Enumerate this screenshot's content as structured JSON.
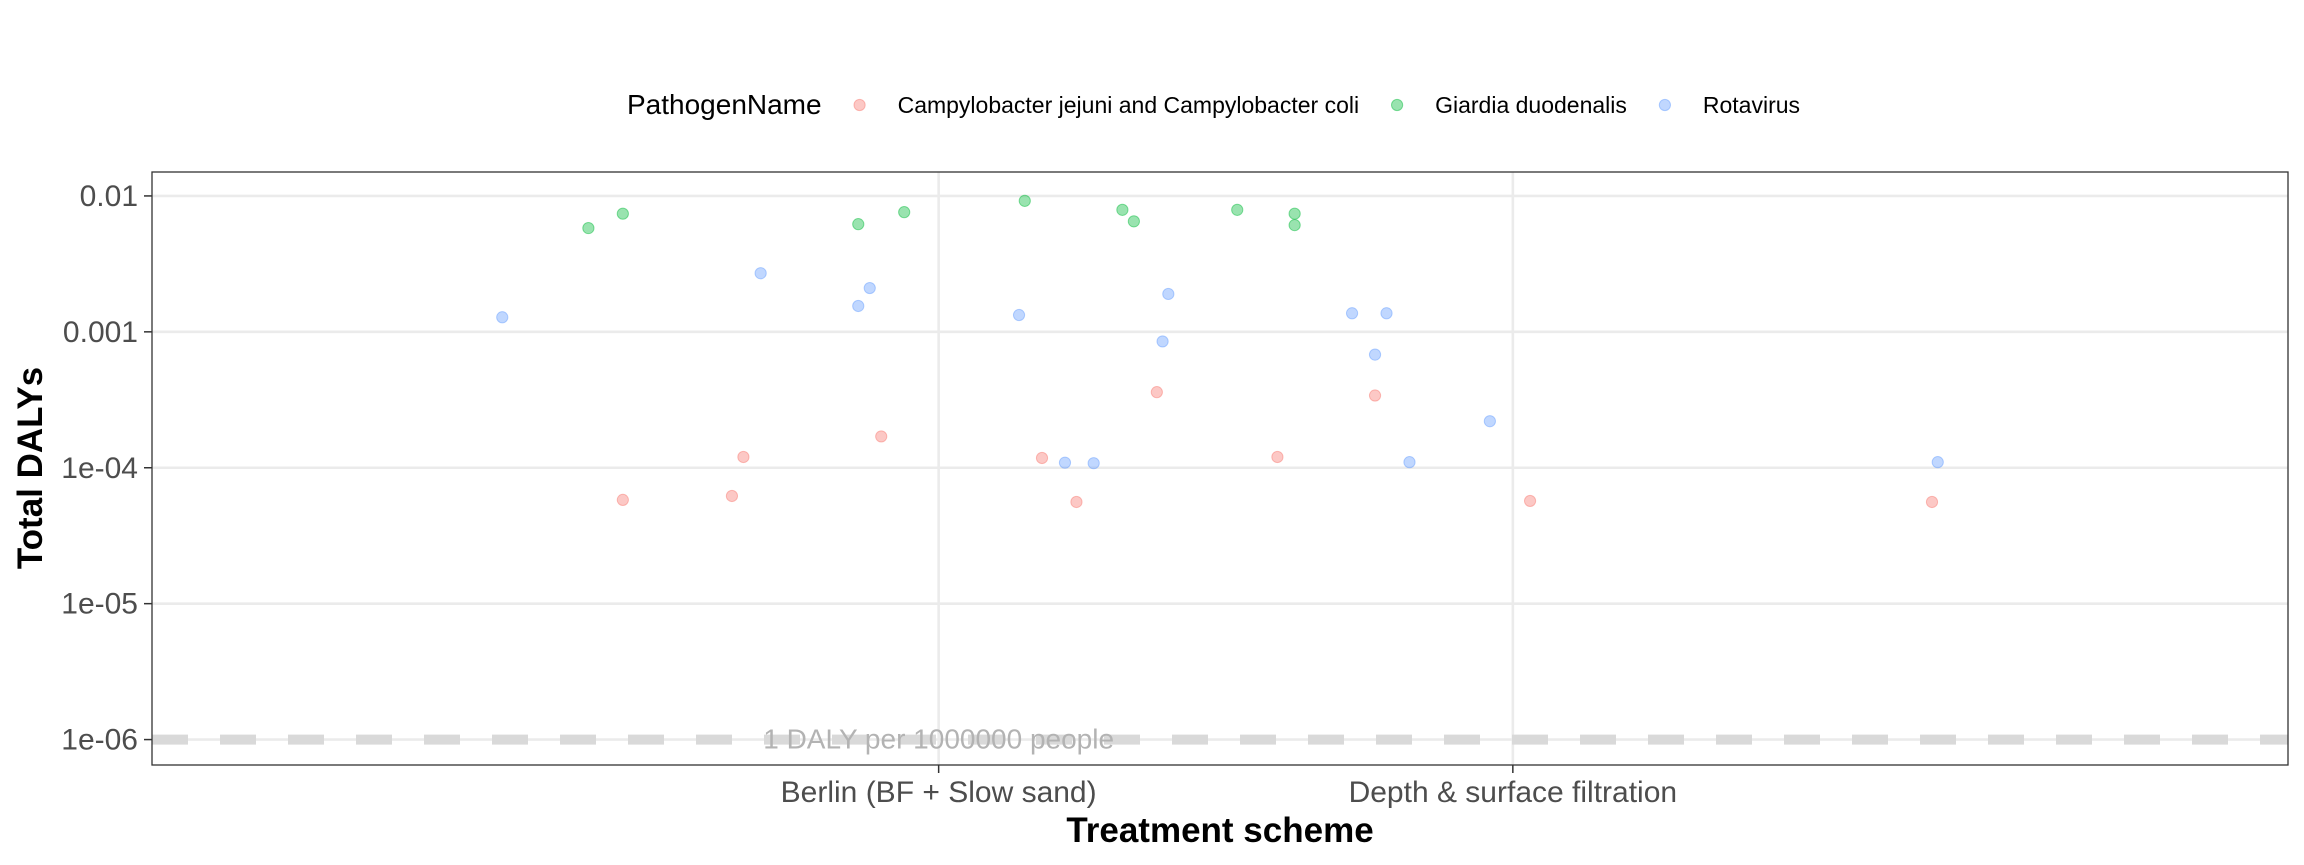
{
  "chart_data": {
    "type": "scatter",
    "title": "",
    "xlabel": "Treatment scheme",
    "ylabel": "Total DALYs",
    "y_scale": "log10",
    "ylim": [
      6.5e-07,
      0.015
    ],
    "y_ticks": [
      {
        "value": 0.01,
        "label": "0.01"
      },
      {
        "value": 0.001,
        "label": "0.001"
      },
      {
        "value": 0.0001,
        "label": "1e-04"
      },
      {
        "value": 1e-05,
        "label": "1e-05"
      },
      {
        "value": 1e-06,
        "label": "1e-06"
      }
    ],
    "x_range": [
      -0.37,
      3.35
    ],
    "x_categories": [
      {
        "position": 1,
        "label": "Berlin (BF + Slow sand)"
      },
      {
        "position": 2,
        "label": "Depth & surface filtration"
      }
    ],
    "grid": true,
    "legend": {
      "title": "PathogenName",
      "placement": "top",
      "entries": [
        {
          "name": "Campylobacter jejuni and Campylobacter coli",
          "color": "#F8766D"
        },
        {
          "name": "Giardia duodenalis",
          "color": "#00BA38"
        },
        {
          "name": "Rotavirus",
          "color": "#619CFF"
        }
      ]
    },
    "reference_line": {
      "value": 1e-06,
      "label": "1 DALY per 1000000 people",
      "color": "#d9d9d9"
    },
    "series": [
      {
        "name": "Campylobacter jejuni and Campylobacter coli",
        "color": "#F8766D",
        "points": [
          {
            "x": 0.45,
            "y": 5.8e-05
          },
          {
            "x": 0.64,
            "y": 6.2e-05
          },
          {
            "x": 0.66,
            "y": 0.00012
          },
          {
            "x": 0.9,
            "y": 0.00017
          },
          {
            "x": 1.18,
            "y": 0.000118
          },
          {
            "x": 1.24,
            "y": 5.6e-05
          },
          {
            "x": 1.38,
            "y": 0.00036
          },
          {
            "x": 1.59,
            "y": 0.00012
          },
          {
            "x": 1.76,
            "y": 0.00034
          },
          {
            "x": 2.03,
            "y": 5.7e-05
          },
          {
            "x": 2.73,
            "y": 5.6e-05
          }
        ]
      },
      {
        "name": "Giardia duodenalis",
        "color": "#00BA38",
        "points": [
          {
            "x": 0.39,
            "y": 0.0058
          },
          {
            "x": 0.45,
            "y": 0.0074
          },
          {
            "x": 0.86,
            "y": 0.0062
          },
          {
            "x": 0.94,
            "y": 0.0076
          },
          {
            "x": 1.15,
            "y": 0.0092
          },
          {
            "x": 1.32,
            "y": 0.0079
          },
          {
            "x": 1.34,
            "y": 0.0065
          },
          {
            "x": 1.52,
            "y": 0.0079
          },
          {
            "x": 1.62,
            "y": 0.0074
          },
          {
            "x": 1.62,
            "y": 0.0061
          }
        ]
      },
      {
        "name": "Rotavirus",
        "color": "#619CFF",
        "points": [
          {
            "x": 0.24,
            "y": 0.00128
          },
          {
            "x": 0.69,
            "y": 0.0027
          },
          {
            "x": 0.86,
            "y": 0.00155
          },
          {
            "x": 0.88,
            "y": 0.0021
          },
          {
            "x": 1.14,
            "y": 0.00133
          },
          {
            "x": 1.22,
            "y": 0.000109
          },
          {
            "x": 1.27,
            "y": 0.000108
          },
          {
            "x": 1.39,
            "y": 0.00085
          },
          {
            "x": 1.4,
            "y": 0.0019
          },
          {
            "x": 1.72,
            "y": 0.00137
          },
          {
            "x": 1.76,
            "y": 0.00068
          },
          {
            "x": 1.78,
            "y": 0.00137
          },
          {
            "x": 1.82,
            "y": 0.00011
          },
          {
            "x": 1.96,
            "y": 0.00022
          },
          {
            "x": 2.74,
            "y": 0.00011
          }
        ]
      }
    ]
  }
}
